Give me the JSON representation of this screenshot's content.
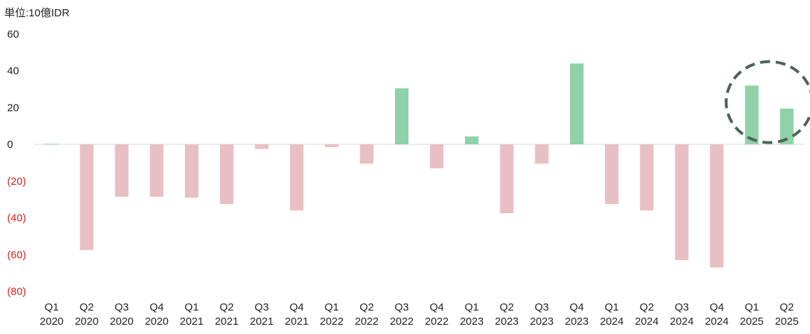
{
  "chart_data": {
    "type": "bar",
    "unit_label": "単位:10億IDR",
    "categories": [
      {
        "quarter": "Q1",
        "year": "2020"
      },
      {
        "quarter": "Q2",
        "year": "2020"
      },
      {
        "quarter": "Q3",
        "year": "2020"
      },
      {
        "quarter": "Q4",
        "year": "2020"
      },
      {
        "quarter": "Q1",
        "year": "2021"
      },
      {
        "quarter": "Q2",
        "year": "2021"
      },
      {
        "quarter": "Q3",
        "year": "2021"
      },
      {
        "quarter": "Q4",
        "year": "2021"
      },
      {
        "quarter": "Q1",
        "year": "2022"
      },
      {
        "quarter": "Q2",
        "year": "2022"
      },
      {
        "quarter": "Q3",
        "year": "2022"
      },
      {
        "quarter": "Q4",
        "year": "2022"
      },
      {
        "quarter": "Q1",
        "year": "2023"
      },
      {
        "quarter": "Q2",
        "year": "2023"
      },
      {
        "quarter": "Q3",
        "year": "2023"
      },
      {
        "quarter": "Q4",
        "year": "2023"
      },
      {
        "quarter": "Q1",
        "year": "2024"
      },
      {
        "quarter": "Q2",
        "year": "2024"
      },
      {
        "quarter": "Q3",
        "year": "2024"
      },
      {
        "quarter": "Q4",
        "year": "2024"
      },
      {
        "quarter": "Q1",
        "year": "2025"
      },
      {
        "quarter": "Q2",
        "year": "2025"
      }
    ],
    "values": [
      0.3,
      -57.5,
      -28.5,
      -28.5,
      -29,
      -32.5,
      -2.5,
      -36,
      -1.5,
      -10.5,
      30.5,
      -13,
      4.3,
      -37.5,
      -10.5,
      44,
      -32.5,
      -36,
      -63,
      -67,
      32,
      19.5
    ],
    "ylim": [
      -80,
      60
    ],
    "yticks": [
      {
        "value": 60,
        "label": "60"
      },
      {
        "value": 40,
        "label": "40"
      },
      {
        "value": 20,
        "label": "20"
      },
      {
        "value": 0,
        "label": "0"
      },
      {
        "value": -20,
        "label": "(20)"
      },
      {
        "value": -40,
        "label": "(40)"
      },
      {
        "value": -60,
        "label": "(60)"
      },
      {
        "value": -80,
        "label": "(80)"
      }
    ],
    "grid": false,
    "legend": "none",
    "highlight": {
      "categories": [
        20,
        21
      ],
      "style": "dashed-circle"
    },
    "colors": {
      "positive": "#8fd1a8",
      "negative": "#e8bfc5",
      "positive_tick": "#222222",
      "negative_tick": "#e02020",
      "zero_line": "#d9d9d9",
      "highlight": "#4d6357"
    }
  }
}
